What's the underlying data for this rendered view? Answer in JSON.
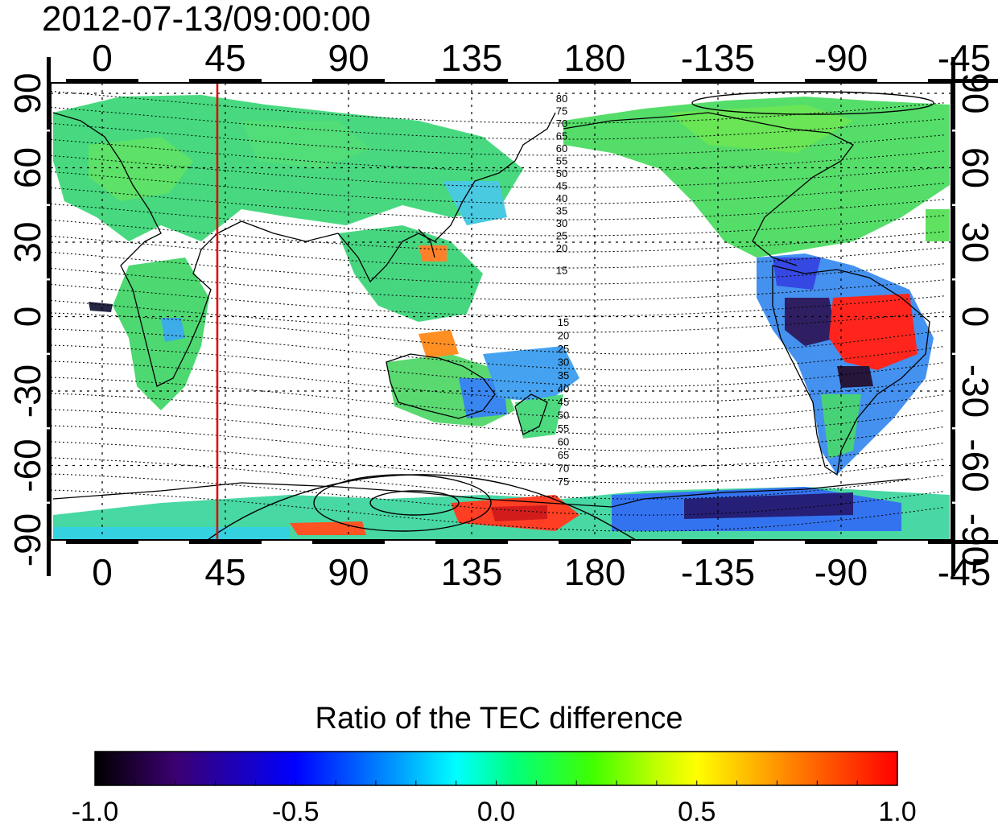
{
  "timestamp": "2012-07-13/09:00:00",
  "lon_ticks_top": [
    "0",
    "45",
    "90",
    "135",
    "180",
    "-135",
    "-90",
    "-45"
  ],
  "lon_ticks_bottom": [
    "0",
    "45",
    "90",
    "135",
    "180",
    "-135",
    "-90",
    "-45"
  ],
  "lat_ticks_left": [
    "90",
    "60",
    "30",
    "0",
    "-30",
    "-60",
    "-90"
  ],
  "lat_ticks_right": [
    "90",
    "60",
    "30",
    "0",
    "-30",
    "-60",
    "-90"
  ],
  "contour_labels_north": [
    "80",
    "75",
    "70",
    "65",
    "60",
    "55",
    "50",
    "45",
    "40",
    "35",
    "30",
    "25",
    "20",
    "15"
  ],
  "contour_labels_south": [
    "15",
    "20",
    "25",
    "30",
    "35",
    "40",
    "45",
    "50",
    "55",
    "60",
    "65",
    "70",
    "75"
  ],
  "marker_longitude": 45,
  "colorbar": {
    "title": "Ratio of the TEC difference",
    "ticks": [
      "-1.0",
      "-0.5",
      "0.0",
      "0.5",
      "1.0"
    ],
    "colors": [
      "#000000",
      "#3c0070",
      "#0000ff",
      "#00a0ff",
      "#00ffff",
      "#00ff80",
      "#40ff00",
      "#c0ff00",
      "#ffff00",
      "#ff8000",
      "#ff0000"
    ]
  }
}
